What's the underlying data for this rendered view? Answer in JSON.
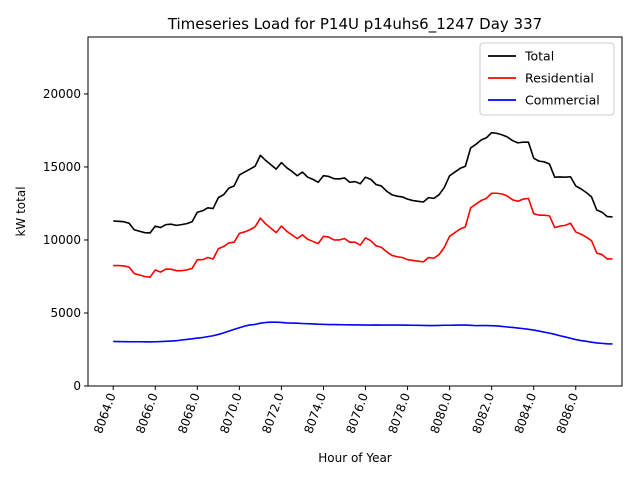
{
  "chart_data": {
    "type": "line",
    "title": "Timeseries Load for P14U p14uhs6_1247  Day 337",
    "xlabel": "Hour of Year",
    "ylabel": "kW total",
    "xlim": [
      8062.8,
      8088.2
    ],
    "ylim": [
      0,
      23900
    ],
    "x_ticks": [
      8064.0,
      8066.0,
      8068.0,
      8070.0,
      8072.0,
      8074.0,
      8076.0,
      8078.0,
      8080.0,
      8082.0,
      8084.0,
      8086.0
    ],
    "x_tick_labels": [
      "8064.0",
      "8066.0",
      "8068.0",
      "8070.0",
      "8072.0",
      "8074.0",
      "8076.0",
      "8078.0",
      "8080.0",
      "8082.0",
      "8084.0",
      "8086.0"
    ],
    "y_ticks": [
      0,
      5000,
      10000,
      15000,
      20000
    ],
    "y_tick_labels": [
      "0",
      "5000",
      "10000",
      "15000",
      "20000"
    ],
    "legend_position": "top-right",
    "x_start": 8064.0,
    "x_step": 0.25,
    "series": [
      {
        "name": "Total",
        "color": "#000000",
        "values": [
          11300,
          11280,
          11250,
          11150,
          10700,
          10600,
          10500,
          10480,
          10950,
          10850,
          11050,
          11080,
          11000,
          11050,
          11120,
          11250,
          11900,
          12000,
          12200,
          12150,
          12900,
          13100,
          13550,
          13700,
          14450,
          14650,
          14850,
          15050,
          15800,
          15450,
          15150,
          14850,
          15300,
          14950,
          14700,
          14400,
          14650,
          14300,
          14150,
          13950,
          14400,
          14350,
          14200,
          14180,
          14250,
          13950,
          14000,
          13850,
          14300,
          14150,
          13800,
          13700,
          13350,
          13100,
          13000,
          12950,
          12800,
          12700,
          12650,
          12600,
          12900,
          12850,
          13100,
          13600,
          14400,
          14650,
          14900,
          15050,
          16300,
          16550,
          16850,
          17000,
          17350,
          17300,
          17200,
          17050,
          16800,
          16650,
          16700,
          16700,
          15600,
          15400,
          15350,
          15200,
          14300,
          14320,
          14300,
          14330,
          13700,
          13500,
          13250,
          12950,
          12050,
          11900,
          11600,
          11580
        ]
      },
      {
        "name": "Residential",
        "color": "#ff0000",
        "values": [
          8250,
          8250,
          8220,
          8150,
          7700,
          7600,
          7500,
          7450,
          7950,
          7800,
          8000,
          8000,
          7900,
          7900,
          7950,
          8050,
          8650,
          8650,
          8800,
          8700,
          9400,
          9550,
          9800,
          9850,
          10450,
          10550,
          10700,
          10900,
          11500,
          11100,
          10800,
          10500,
          10950,
          10600,
          10350,
          10100,
          10350,
          10050,
          9900,
          9750,
          10250,
          10200,
          10000,
          10000,
          10100,
          9850,
          9850,
          9650,
          10150,
          9950,
          9600,
          9500,
          9200,
          8950,
          8850,
          8800,
          8650,
          8600,
          8550,
          8500,
          8800,
          8750,
          9000,
          9500,
          10250,
          10500,
          10750,
          10900,
          12200,
          12450,
          12700,
          12850,
          13200,
          13200,
          13150,
          13000,
          12750,
          12650,
          12800,
          12850,
          11800,
          11700,
          11700,
          11650,
          10850,
          10950,
          11000,
          11150,
          10550,
          10400,
          10200,
          9950,
          9100,
          9000,
          8700,
          8700
        ]
      },
      {
        "name": "Commercial",
        "color": "#0000ff",
        "values": [
          3050,
          3040,
          3035,
          3030,
          3030,
          3030,
          3025,
          3020,
          3030,
          3040,
          3060,
          3080,
          3100,
          3150,
          3190,
          3230,
          3280,
          3320,
          3380,
          3440,
          3530,
          3640,
          3760,
          3880,
          3990,
          4100,
          4180,
          4220,
          4300,
          4350,
          4370,
          4370,
          4350,
          4320,
          4310,
          4300,
          4280,
          4270,
          4250,
          4230,
          4220,
          4210,
          4205,
          4200,
          4195,
          4190,
          4185,
          4180,
          4175,
          4175,
          4180,
          4175,
          4170,
          4170,
          4175,
          4170,
          4165,
          4160,
          4155,
          4150,
          4140,
          4140,
          4150,
          4160,
          4160,
          4165,
          4170,
          4170,
          4155,
          4135,
          4140,
          4140,
          4130,
          4110,
          4080,
          4040,
          4010,
          3970,
          3930,
          3880,
          3830,
          3760,
          3690,
          3620,
          3540,
          3440,
          3360,
          3270,
          3180,
          3110,
          3060,
          3000,
          2950,
          2920,
          2890,
          2880
        ]
      }
    ]
  }
}
